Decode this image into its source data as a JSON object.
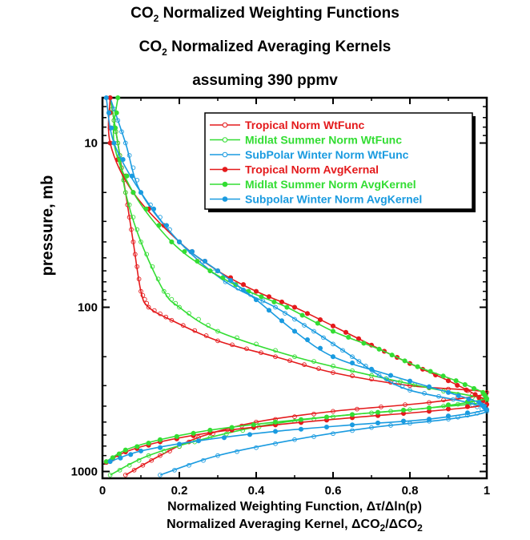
{
  "header": {
    "line1_prefix": "CO",
    "line1_sub": "2",
    "line1_rest": " Normalized Weighting Functions",
    "line2_prefix": "CO",
    "line2_sub": "2",
    "line2_rest": " Normalized Averaging Kernels",
    "line3": "assuming 390 ppmv"
  },
  "axes": {
    "xlabel_line1": "Normalized Weighting Function, Δτ/Δln(p)",
    "xlabel_line2_a": "Normalized Averaging Kernel, ΔCO",
    "xlabel_line2_sub1": "2",
    "xlabel_line2_b": "/ΔCO",
    "xlabel_line2_sub2": "2",
    "ylabel": "pressure, mb"
  },
  "chart_data": {
    "type": "line",
    "x_axis": {
      "scale": "linear",
      "range": [
        0,
        1
      ],
      "ticks": [
        0,
        0.2,
        0.4,
        0.6,
        0.8,
        1
      ],
      "tick_labels": [
        "0",
        "0.2",
        "0.4",
        "0.6",
        "0.8",
        "1"
      ]
    },
    "y_axis": {
      "scale": "log",
      "inverted": true,
      "range": [
        5.3,
        1100
      ],
      "ticks": [
        10,
        100,
        1000
      ],
      "tick_labels": [
        "10",
        "100",
        "1000"
      ]
    },
    "legend_position": "top-right",
    "series": [
      {
        "name": "Tropical Norm WtFunc",
        "color": "#e41a1c",
        "marker": "open-circle",
        "points": [
          [
            0.02,
            5.3
          ],
          [
            0.04,
            10
          ],
          [
            0.06,
            20
          ],
          [
            0.08,
            40
          ],
          [
            0.1,
            80
          ],
          [
            0.12,
            100
          ],
          [
            0.18,
            120
          ],
          [
            0.3,
            160
          ],
          [
            0.45,
            200
          ],
          [
            0.6,
            250
          ],
          [
            0.8,
            300
          ],
          [
            1.0,
            330
          ],
          [
            0.85,
            380
          ],
          [
            0.6,
            430
          ],
          [
            0.4,
            500
          ],
          [
            0.25,
            620
          ],
          [
            0.15,
            800
          ],
          [
            0.06,
            1050
          ]
        ]
      },
      {
        "name": "Midlat Summer Norm WtFunc",
        "color": "#33dd33",
        "marker": "open-circle",
        "points": [
          [
            0.02,
            5.3
          ],
          [
            0.04,
            10
          ],
          [
            0.06,
            20
          ],
          [
            0.1,
            40
          ],
          [
            0.16,
            80
          ],
          [
            0.2,
            100
          ],
          [
            0.3,
            140
          ],
          [
            0.5,
            200
          ],
          [
            0.7,
            260
          ],
          [
            0.85,
            310
          ],
          [
            1.0,
            370
          ],
          [
            0.85,
            410
          ],
          [
            0.65,
            450
          ],
          [
            0.45,
            510
          ],
          [
            0.28,
            620
          ],
          [
            0.12,
            800
          ],
          [
            0.02,
            1050
          ]
        ]
      },
      {
        "name": "SubPolar Winter Norm WtFunc",
        "color": "#1a9be0",
        "marker": "open-circle",
        "points": [
          [
            0.02,
            5.3
          ],
          [
            0.06,
            10
          ],
          [
            0.1,
            20
          ],
          [
            0.2,
            40
          ],
          [
            0.32,
            70
          ],
          [
            0.45,
            100
          ],
          [
            0.55,
            140
          ],
          [
            0.65,
            200
          ],
          [
            0.72,
            260
          ],
          [
            0.8,
            320
          ],
          [
            0.95,
            380
          ],
          [
            1.0,
            430
          ],
          [
            0.9,
            480
          ],
          [
            0.7,
            540
          ],
          [
            0.5,
            640
          ],
          [
            0.3,
            800
          ],
          [
            0.15,
            1050
          ]
        ]
      },
      {
        "name": "Tropical Norm AvgKernal",
        "color": "#e41a1c",
        "marker": "filled-circle",
        "points": [
          [
            0.02,
            5.3
          ],
          [
            0.02,
            10
          ],
          [
            0.08,
            20
          ],
          [
            0.2,
            40
          ],
          [
            0.3,
            60
          ],
          [
            0.4,
            80
          ],
          [
            0.5,
            100
          ],
          [
            0.6,
            130
          ],
          [
            0.7,
            170
          ],
          [
            0.8,
            220
          ],
          [
            0.9,
            280
          ],
          [
            0.97,
            340
          ],
          [
            1.0,
            390
          ],
          [
            0.85,
            430
          ],
          [
            0.65,
            470
          ],
          [
            0.45,
            520
          ],
          [
            0.28,
            580
          ],
          [
            0.15,
            660
          ],
          [
            0.06,
            760
          ],
          [
            0.01,
            880
          ]
        ]
      },
      {
        "name": "Midlat Summer Norm AvgKernel",
        "color": "#33dd33",
        "marker": "filled-circle",
        "points": [
          [
            0.04,
            5.3
          ],
          [
            0.03,
            10
          ],
          [
            0.08,
            20
          ],
          [
            0.18,
            40
          ],
          [
            0.28,
            60
          ],
          [
            0.38,
            80
          ],
          [
            0.48,
            100
          ],
          [
            0.6,
            140
          ],
          [
            0.72,
            180
          ],
          [
            0.82,
            230
          ],
          [
            0.92,
            280
          ],
          [
            0.99,
            330
          ],
          [
            1.0,
            360
          ],
          [
            0.85,
            410
          ],
          [
            0.65,
            450
          ],
          [
            0.45,
            500
          ],
          [
            0.28,
            560
          ],
          [
            0.15,
            640
          ],
          [
            0.06,
            740
          ],
          [
            0.01,
            870
          ]
        ]
      },
      {
        "name": "Subpolar Winter Norm AvgKernel",
        "color": "#1a9be0",
        "marker": "filled-circle",
        "points": [
          [
            0.01,
            5.3
          ],
          [
            0.03,
            10
          ],
          [
            0.1,
            20
          ],
          [
            0.2,
            40
          ],
          [
            0.3,
            60
          ],
          [
            0.4,
            90
          ],
          [
            0.5,
            140
          ],
          [
            0.6,
            200
          ],
          [
            0.75,
            260
          ],
          [
            0.9,
            330
          ],
          [
            0.98,
            380
          ],
          [
            1.0,
            420
          ],
          [
            0.85,
            480
          ],
          [
            0.65,
            520
          ],
          [
            0.45,
            570
          ],
          [
            0.25,
            650
          ],
          [
            0.1,
            750
          ],
          [
            0.02,
            870
          ]
        ]
      }
    ]
  }
}
